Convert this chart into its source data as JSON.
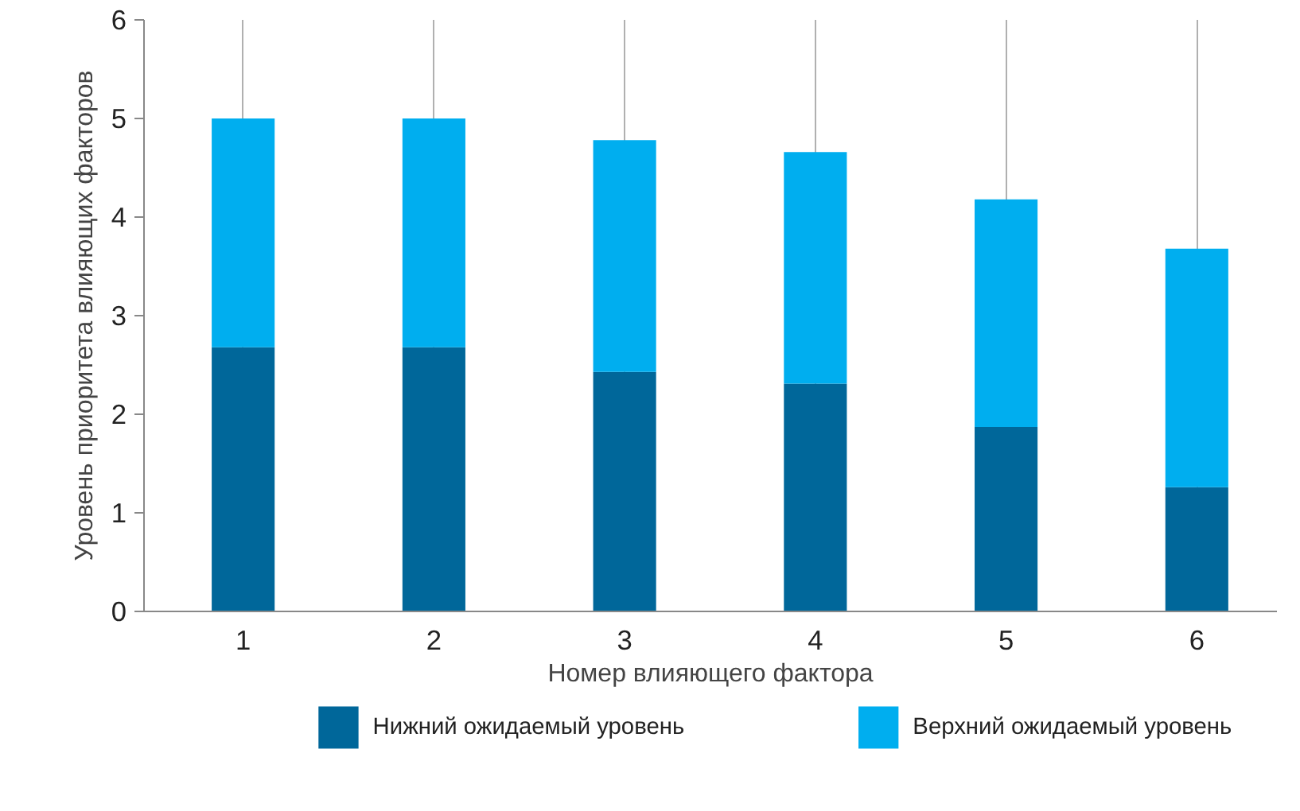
{
  "chart_data": {
    "type": "bar",
    "stacked": true,
    "xlabel": "Номер влияющего фактора",
    "ylabel": "Уровень приоритета влияющих факторов",
    "categories": [
      "1",
      "2",
      "3",
      "4",
      "5",
      "6"
    ],
    "series": [
      {
        "name": "Нижний ожидаемый уровень",
        "color": "#00679a",
        "values": [
          2.68,
          2.68,
          2.43,
          2.31,
          1.87,
          1.26
        ]
      },
      {
        "name": "Верхний ожидаемый уровень",
        "color": "#00aeef",
        "values": [
          2.32,
          2.32,
          2.35,
          2.35,
          2.31,
          2.42
        ]
      }
    ],
    "ylim": [
      0,
      6
    ],
    "yticks": [
      0,
      1,
      2,
      3,
      4,
      5,
      6
    ],
    "grid": "x",
    "legend": "bottom"
  }
}
